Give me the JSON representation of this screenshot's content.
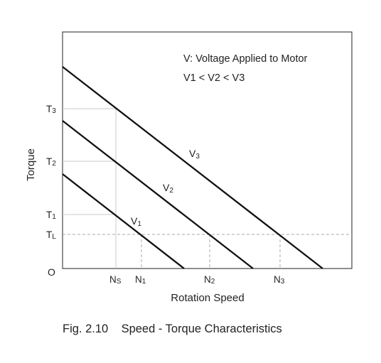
{
  "legend": {
    "line1": "V: Voltage Applied to Motor",
    "line2": "V1 < V2 < V3"
  },
  "axes": {
    "ylabel": "Torque",
    "xlabel": "Rotation Speed",
    "origin": "O"
  },
  "ticks": {
    "y": [
      {
        "id": "T3",
        "main": "T",
        "sub": "3"
      },
      {
        "id": "T2",
        "main": "T",
        "sub": "2"
      },
      {
        "id": "T1",
        "main": "T",
        "sub": "1"
      },
      {
        "id": "TL",
        "main": "T",
        "sub": "L"
      }
    ],
    "x": [
      {
        "id": "Ns",
        "main": "N",
        "sub": "S"
      },
      {
        "id": "N1",
        "main": "N",
        "sub": "1"
      },
      {
        "id": "N2",
        "main": "N",
        "sub": "2"
      },
      {
        "id": "N3",
        "main": "N",
        "sub": "3"
      }
    ]
  },
  "lines": [
    {
      "id": "V1",
      "main": "V",
      "sub": "1"
    },
    {
      "id": "V2",
      "main": "V",
      "sub": "2"
    },
    {
      "id": "V3",
      "main": "V",
      "sub": "3"
    }
  ],
  "caption": {
    "fig": "Fig. 2.10",
    "title": "Speed - Torque Characteristics"
  },
  "colors": {
    "line": "#111111",
    "frame": "#222222",
    "guide": "#c8c8c8",
    "dash": "#aaaaaa"
  }
}
